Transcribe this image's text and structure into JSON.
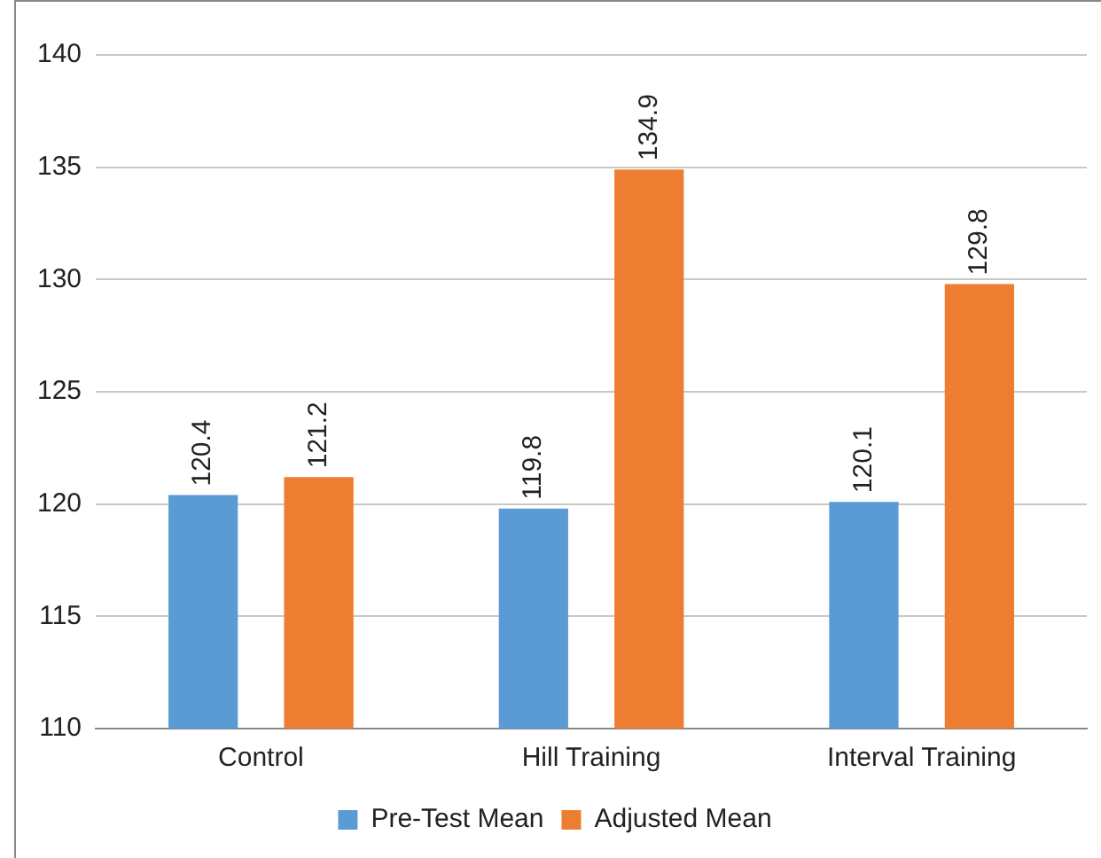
{
  "chart_data": {
    "type": "bar",
    "categories": [
      "Control",
      "Hill Training",
      "Interval Training"
    ],
    "series": [
      {
        "name": "Pre-Test Mean",
        "color": "#5b9bd5",
        "values": [
          120.4,
          119.8,
          120.1
        ]
      },
      {
        "name": "Adjusted Mean",
        "color": "#ed7d31",
        "values": [
          121.2,
          134.9,
          129.8
        ]
      }
    ],
    "ylim": [
      110,
      140
    ],
    "yticks": [
      110,
      115,
      120,
      125,
      130,
      135,
      140
    ],
    "grid": "y",
    "legend": "bottom",
    "data_labels": true
  }
}
